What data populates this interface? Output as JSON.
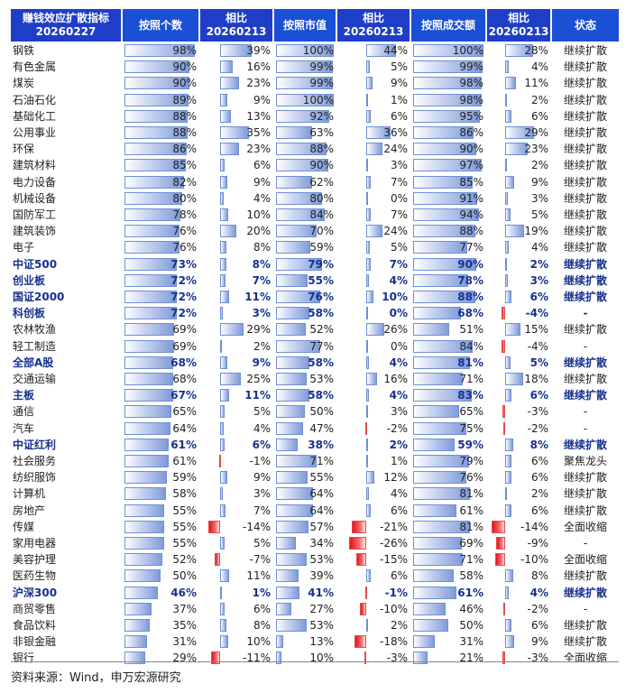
{
  "chart_data": {
    "type": "table",
    "header": {
      "indicator": [
        "赚钱效应扩散指标",
        "20260227"
      ],
      "count": [
        "按照个数"
      ],
      "count_chg": [
        "相比",
        "20260213"
      ],
      "mcap": [
        "按照市值"
      ],
      "mcap_chg": [
        "相比",
        "20260213"
      ],
      "turnover": [
        "按照成交额"
      ],
      "turnover_chg": [
        "相比",
        "20260213"
      ],
      "status": [
        "状态"
      ]
    },
    "rows": [
      {
        "name": "钢铁",
        "bold": false,
        "count": "98%",
        "count_chg": "39%",
        "mcap": "100%",
        "mcap_chg": "44%",
        "turnover": "100%",
        "turnover_chg": "28%",
        "status": "继续扩散"
      },
      {
        "name": "有色金属",
        "bold": false,
        "count": "90%",
        "count_chg": "16%",
        "mcap": "99%",
        "mcap_chg": "5%",
        "turnover": "99%",
        "turnover_chg": "4%",
        "status": "继续扩散"
      },
      {
        "name": "煤炭",
        "bold": false,
        "count": "90%",
        "count_chg": "23%",
        "mcap": "99%",
        "mcap_chg": "9%",
        "turnover": "98%",
        "turnover_chg": "11%",
        "status": "继续扩散"
      },
      {
        "name": "石油石化",
        "bold": false,
        "count": "89%",
        "count_chg": "9%",
        "mcap": "100%",
        "mcap_chg": "1%",
        "turnover": "98%",
        "turnover_chg": "2%",
        "status": "继续扩散"
      },
      {
        "name": "基础化工",
        "bold": false,
        "count": "88%",
        "count_chg": "13%",
        "mcap": "92%",
        "mcap_chg": "6%",
        "turnover": "95%",
        "turnover_chg": "6%",
        "status": "继续扩散"
      },
      {
        "name": "公用事业",
        "bold": false,
        "count": "88%",
        "count_chg": "35%",
        "mcap": "63%",
        "mcap_chg": "36%",
        "turnover": "86%",
        "turnover_chg": "29%",
        "status": "继续扩散"
      },
      {
        "name": "环保",
        "bold": false,
        "count": "86%",
        "count_chg": "23%",
        "mcap": "88%",
        "mcap_chg": "24%",
        "turnover": "90%",
        "turnover_chg": "23%",
        "status": "继续扩散"
      },
      {
        "name": "建筑材料",
        "bold": false,
        "count": "85%",
        "count_chg": "6%",
        "mcap": "90%",
        "mcap_chg": "3%",
        "turnover": "97%",
        "turnover_chg": "2%",
        "status": "继续扩散"
      },
      {
        "name": "电力设备",
        "bold": false,
        "count": "82%",
        "count_chg": "9%",
        "mcap": "62%",
        "mcap_chg": "7%",
        "turnover": "85%",
        "turnover_chg": "9%",
        "status": "继续扩散"
      },
      {
        "name": "机械设备",
        "bold": false,
        "count": "80%",
        "count_chg": "4%",
        "mcap": "80%",
        "mcap_chg": "0%",
        "turnover": "91%",
        "turnover_chg": "3%",
        "status": "继续扩散"
      },
      {
        "name": "国防军工",
        "bold": false,
        "count": "78%",
        "count_chg": "10%",
        "mcap": "84%",
        "mcap_chg": "7%",
        "turnover": "94%",
        "turnover_chg": "5%",
        "status": "继续扩散"
      },
      {
        "name": "建筑装饰",
        "bold": false,
        "count": "76%",
        "count_chg": "20%",
        "mcap": "70%",
        "mcap_chg": "24%",
        "turnover": "88%",
        "turnover_chg": "19%",
        "status": "继续扩散"
      },
      {
        "name": "电子",
        "bold": false,
        "count": "76%",
        "count_chg": "8%",
        "mcap": "59%",
        "mcap_chg": "5%",
        "turnover": "77%",
        "turnover_chg": "4%",
        "status": "继续扩散"
      },
      {
        "name": "中证500",
        "bold": true,
        "count": "73%",
        "count_chg": "8%",
        "mcap": "79%",
        "mcap_chg": "7%",
        "turnover": "90%",
        "turnover_chg": "2%",
        "status": "继续扩散"
      },
      {
        "name": "创业板",
        "bold": true,
        "count": "72%",
        "count_chg": "7%",
        "mcap": "55%",
        "mcap_chg": "4%",
        "turnover": "78%",
        "turnover_chg": "3%",
        "status": "继续扩散"
      },
      {
        "name": "国证2000",
        "bold": true,
        "count": "72%",
        "count_chg": "11%",
        "mcap": "76%",
        "mcap_chg": "10%",
        "turnover": "88%",
        "turnover_chg": "6%",
        "status": "继续扩散"
      },
      {
        "name": "科创板",
        "bold": true,
        "count": "72%",
        "count_chg": "3%",
        "mcap": "58%",
        "mcap_chg": "0%",
        "turnover": "68%",
        "turnover_chg": "-4%",
        "status": "-"
      },
      {
        "name": "农林牧渔",
        "bold": false,
        "count": "69%",
        "count_chg": "29%",
        "mcap": "52%",
        "mcap_chg": "26%",
        "turnover": "51%",
        "turnover_chg": "15%",
        "status": "继续扩散"
      },
      {
        "name": "轻工制造",
        "bold": false,
        "count": "69%",
        "count_chg": "2%",
        "mcap": "77%",
        "mcap_chg": "0%",
        "turnover": "84%",
        "turnover_chg": "-4%",
        "status": "-"
      },
      {
        "name": "全部A股",
        "bold": true,
        "count": "68%",
        "count_chg": "9%",
        "mcap": "58%",
        "mcap_chg": "4%",
        "turnover": "81%",
        "turnover_chg": "5%",
        "status": "继续扩散"
      },
      {
        "name": "交通运输",
        "bold": false,
        "count": "68%",
        "count_chg": "25%",
        "mcap": "53%",
        "mcap_chg": "16%",
        "turnover": "71%",
        "turnover_chg": "18%",
        "status": "继续扩散"
      },
      {
        "name": "主板",
        "bold": true,
        "count": "67%",
        "count_chg": "11%",
        "mcap": "58%",
        "mcap_chg": "4%",
        "turnover": "83%",
        "turnover_chg": "6%",
        "status": "继续扩散"
      },
      {
        "name": "通信",
        "bold": false,
        "count": "65%",
        "count_chg": "5%",
        "mcap": "50%",
        "mcap_chg": "3%",
        "turnover": "65%",
        "turnover_chg": "-3%",
        "status": "-"
      },
      {
        "name": "汽车",
        "bold": false,
        "count": "64%",
        "count_chg": "4%",
        "mcap": "47%",
        "mcap_chg": "-2%",
        "turnover": "75%",
        "turnover_chg": "-2%",
        "status": "-"
      },
      {
        "name": "中证红利",
        "bold": true,
        "count": "61%",
        "count_chg": "6%",
        "mcap": "38%",
        "mcap_chg": "2%",
        "turnover": "59%",
        "turnover_chg": "8%",
        "status": "继续扩散"
      },
      {
        "name": "社会服务",
        "bold": false,
        "count": "61%",
        "count_chg": "-1%",
        "mcap": "71%",
        "mcap_chg": "1%",
        "turnover": "79%",
        "turnover_chg": "6%",
        "status": "聚焦龙头"
      },
      {
        "name": "纺织服饰",
        "bold": false,
        "count": "59%",
        "count_chg": "9%",
        "mcap": "55%",
        "mcap_chg": "12%",
        "turnover": "76%",
        "turnover_chg": "6%",
        "status": "继续扩散"
      },
      {
        "name": "计算机",
        "bold": false,
        "count": "58%",
        "count_chg": "3%",
        "mcap": "64%",
        "mcap_chg": "4%",
        "turnover": "81%",
        "turnover_chg": "2%",
        "status": "继续扩散"
      },
      {
        "name": "房地产",
        "bold": false,
        "count": "55%",
        "count_chg": "7%",
        "mcap": "64%",
        "mcap_chg": "6%",
        "turnover": "61%",
        "turnover_chg": "6%",
        "status": "继续扩散"
      },
      {
        "name": "传媒",
        "bold": false,
        "count": "55%",
        "count_chg": "-14%",
        "mcap": "57%",
        "mcap_chg": "-21%",
        "turnover": "81%",
        "turnover_chg": "-14%",
        "status": "全面收缩"
      },
      {
        "name": "家用电器",
        "bold": false,
        "count": "55%",
        "count_chg": "5%",
        "mcap": "34%",
        "mcap_chg": "-26%",
        "turnover": "69%",
        "turnover_chg": "-9%",
        "status": "-"
      },
      {
        "name": "美容护理",
        "bold": false,
        "count": "52%",
        "count_chg": "-7%",
        "mcap": "53%",
        "mcap_chg": "-15%",
        "turnover": "71%",
        "turnover_chg": "-10%",
        "status": "全面收缩"
      },
      {
        "name": "医药生物",
        "bold": false,
        "count": "50%",
        "count_chg": "11%",
        "mcap": "39%",
        "mcap_chg": "6%",
        "turnover": "58%",
        "turnover_chg": "8%",
        "status": "继续扩散"
      },
      {
        "name": "沪深300",
        "bold": true,
        "count": "46%",
        "count_chg": "1%",
        "mcap": "41%",
        "mcap_chg": "-1%",
        "turnover": "61%",
        "turnover_chg": "4%",
        "status": "继续扩散"
      },
      {
        "name": "商贸零售",
        "bold": false,
        "count": "37%",
        "count_chg": "6%",
        "mcap": "27%",
        "mcap_chg": "-10%",
        "turnover": "46%",
        "turnover_chg": "-2%",
        "status": "-"
      },
      {
        "name": "食品饮料",
        "bold": false,
        "count": "35%",
        "count_chg": "8%",
        "mcap": "53%",
        "mcap_chg": "2%",
        "turnover": "50%",
        "turnover_chg": "6%",
        "status": "继续扩散"
      },
      {
        "name": "非银金融",
        "bold": false,
        "count": "31%",
        "count_chg": "10%",
        "mcap": "13%",
        "mcap_chg": "-18%",
        "turnover": "31%",
        "turnover_chg": "9%",
        "status": "继续扩散"
      },
      {
        "name": "银行",
        "bold": false,
        "count": "29%",
        "count_chg": "-11%",
        "mcap": "10%",
        "mcap_chg": "-3%",
        "turnover": "21%",
        "turnover_chg": "-3%",
        "status": "全面收缩"
      }
    ]
  },
  "footer": "资料来源：Wind，申万宏源研究",
  "colors": {
    "header_bg": "#1f3ec8",
    "header_alt": "#1a4fd6",
    "pos_bar": "#6f8fd5",
    "neg_bar": "#e8151b",
    "bold_text": "#17318f"
  }
}
